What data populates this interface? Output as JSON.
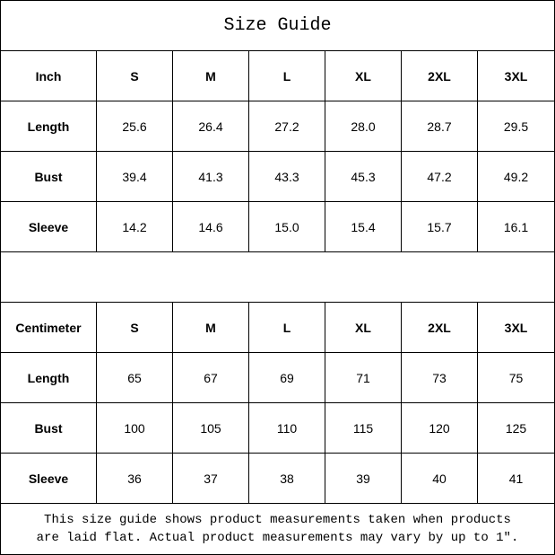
{
  "title": "Size Guide",
  "sizes": [
    "S",
    "M",
    "L",
    "XL",
    "2XL",
    "3XL"
  ],
  "inch": {
    "unit": "Inch",
    "rows": [
      {
        "label": "Length",
        "values": [
          "25.6",
          "26.4",
          "27.2",
          "28.0",
          "28.7",
          "29.5"
        ]
      },
      {
        "label": "Bust",
        "values": [
          "39.4",
          "41.3",
          "43.3",
          "45.3",
          "47.2",
          "49.2"
        ]
      },
      {
        "label": "Sleeve",
        "values": [
          "14.2",
          "14.6",
          "15.0",
          "15.4",
          "15.7",
          "16.1"
        ]
      }
    ]
  },
  "cm": {
    "unit": "Centimeter",
    "rows": [
      {
        "label": "Length",
        "values": [
          "65",
          "67",
          "69",
          "71",
          "73",
          "75"
        ]
      },
      {
        "label": "Bust",
        "values": [
          "100",
          "105",
          "110",
          "115",
          "120",
          "125"
        ]
      },
      {
        "label": "Sleeve",
        "values": [
          "36",
          "37",
          "38",
          "39",
          "40",
          "41"
        ]
      }
    ]
  },
  "note": {
    "line1": "This size guide shows product measurements taken when products",
    "line2": "are laid flat. Actual product measurements may vary by up to 1″."
  }
}
